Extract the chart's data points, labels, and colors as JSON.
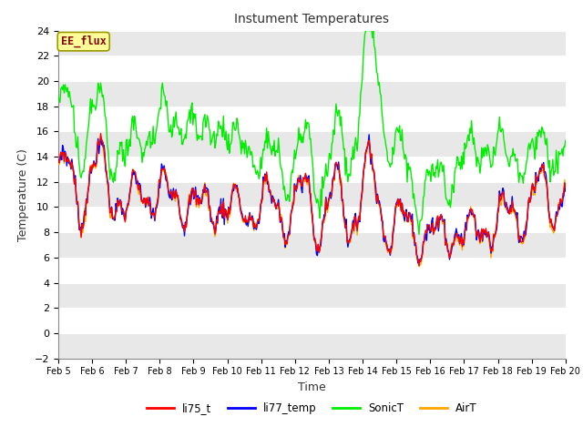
{
  "title": "Instument Temperatures",
  "xlabel": "Time",
  "ylabel": "Temperature (C)",
  "ylim": [
    -2,
    24
  ],
  "yticks": [
    -2,
    0,
    2,
    4,
    6,
    8,
    10,
    12,
    14,
    16,
    18,
    20,
    22,
    24
  ],
  "x_labels": [
    "Feb 5",
    "Feb 6",
    "Feb 7",
    "Feb 8",
    "Feb 9",
    "Feb 10",
    "Feb 11",
    "Feb 12",
    "Feb 13",
    "Feb 14",
    "Feb 15",
    "Feb 16",
    "Feb 17",
    "Feb 18",
    "Feb 19",
    "Feb 20"
  ],
  "annotation_text": "EE_flux",
  "annotation_color": "#8B0000",
  "annotation_bg": "#FFFF99",
  "annotation_border": "#999900",
  "colors": {
    "li75_t": "#FF0000",
    "li77_temp": "#0000FF",
    "SonicT": "#00EE00",
    "AirT": "#FFA500"
  },
  "line_width": 1.0,
  "bg_color": "#FFFFFF",
  "plot_bg": "#FFFFFF",
  "grid_color": "#CCCCCC",
  "n_points": 600
}
